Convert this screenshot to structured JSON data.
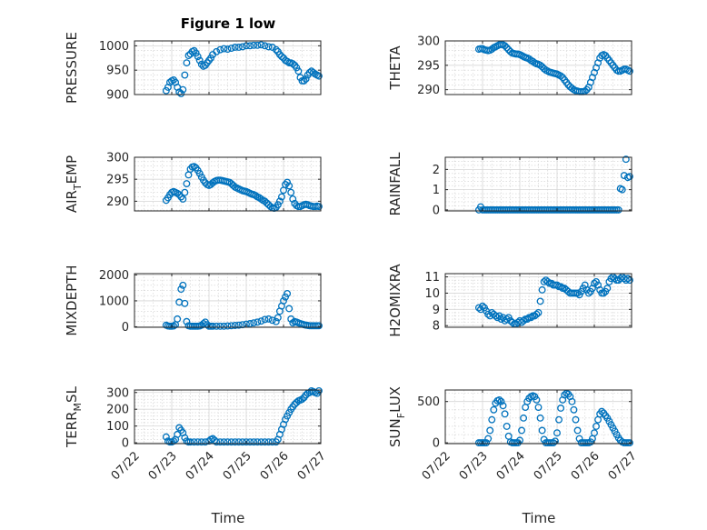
{
  "figure_title": "Figure 1 low",
  "colors": {
    "marker": "#0072bd",
    "axes": "#262626",
    "grid": "#d6d6d6"
  },
  "x_tick_labels": [
    "07/22",
    "07/23",
    "07/24",
    "07/25",
    "07/26",
    "07/27"
  ],
  "x_axis_label": "Time",
  "chart_data": [
    {
      "type": "scatter",
      "title": "Figure 1 low",
      "ylabel": "PRESSURE",
      "xlim": [
        0,
        5
      ],
      "ylim": [
        900,
        1010
      ],
      "yticks": [
        900,
        950,
        1000
      ],
      "grid": "major+minor",
      "x": [
        0.85,
        0.9,
        0.95,
        1.0,
        1.05,
        1.1,
        1.15,
        1.2,
        1.25,
        1.3,
        1.35,
        1.4,
        1.45,
        1.5,
        1.55,
        1.6,
        1.65,
        1.7,
        1.75,
        1.8,
        1.85,
        1.9,
        1.95,
        2.0,
        2.05,
        2.1,
        2.2,
        2.3,
        2.4,
        2.5,
        2.6,
        2.7,
        2.8,
        2.9,
        3.0,
        3.1,
        3.2,
        3.3,
        3.4,
        3.5,
        3.6,
        3.7,
        3.8,
        3.85,
        3.9,
        3.95,
        4.0,
        4.05,
        4.1,
        4.15,
        4.2,
        4.25,
        4.3,
        4.35,
        4.4,
        4.45,
        4.5,
        4.55,
        4.6,
        4.65,
        4.7,
        4.75,
        4.8,
        4.85,
        4.9,
        4.95
      ],
      "y": [
        908,
        915,
        925,
        928,
        930,
        925,
        915,
        905,
        902,
        910,
        940,
        965,
        980,
        983,
        988,
        990,
        985,
        978,
        970,
        962,
        958,
        960,
        965,
        970,
        975,
        982,
        988,
        992,
        994,
        993,
        995,
        997,
        997,
        998,
        1000,
        1000,
        1001,
        1001,
        1002,
        1000,
        998,
        997,
        992,
        988,
        982,
        978,
        975,
        970,
        968,
        965,
        965,
        963,
        960,
        955,
        948,
        935,
        928,
        928,
        932,
        940,
        945,
        948,
        945,
        942,
        940,
        938
      ]
    },
    {
      "type": "scatter",
      "ylabel": "THETA",
      "xlim": [
        0,
        5
      ],
      "ylim": [
        289,
        300
      ],
      "yticks": [
        290,
        295,
        300
      ],
      "grid": "major+minor",
      "x": [
        0.9,
        0.95,
        1.0,
        1.05,
        1.1,
        1.15,
        1.2,
        1.25,
        1.3,
        1.35,
        1.4,
        1.45,
        1.5,
        1.55,
        1.6,
        1.65,
        1.7,
        1.75,
        1.8,
        1.85,
        1.9,
        1.95,
        2.0,
        2.05,
        2.1,
        2.15,
        2.2,
        2.25,
        2.3,
        2.35,
        2.4,
        2.45,
        2.5,
        2.55,
        2.6,
        2.65,
        2.7,
        2.75,
        2.8,
        2.85,
        2.9,
        2.95,
        3.0,
        3.05,
        3.1,
        3.15,
        3.2,
        3.25,
        3.3,
        3.35,
        3.4,
        3.45,
        3.5,
        3.55,
        3.6,
        3.65,
        3.7,
        3.75,
        3.8,
        3.85,
        3.9,
        3.95,
        4.0,
        4.05,
        4.1,
        4.15,
        4.2,
        4.25,
        4.3,
        4.35,
        4.4,
        4.45,
        4.5,
        4.55,
        4.6,
        4.65,
        4.7,
        4.75,
        4.8,
        4.85,
        4.9,
        4.95
      ],
      "y": [
        298.3,
        298.4,
        298.4,
        298.2,
        298.1,
        298.0,
        298.1,
        298.3,
        298.6,
        298.8,
        299.0,
        299.2,
        299.3,
        299.2,
        299.0,
        298.6,
        298.2,
        297.8,
        297.5,
        297.4,
        297.3,
        297.3,
        297.2,
        297.0,
        296.8,
        296.6,
        296.5,
        296.3,
        296.0,
        295.8,
        295.5,
        295.3,
        295.2,
        295.0,
        294.7,
        294.3,
        294.0,
        293.8,
        293.6,
        293.5,
        293.4,
        293.3,
        293.2,
        293.0,
        292.8,
        292.5,
        292.0,
        291.5,
        291.0,
        290.6,
        290.3,
        290.0,
        289.8,
        289.7,
        289.6,
        289.6,
        289.6,
        289.7,
        290.0,
        290.5,
        291.5,
        292.5,
        293.5,
        294.5,
        295.5,
        296.5,
        297.0,
        297.2,
        297.0,
        296.5,
        296.0,
        295.5,
        295.0,
        294.5,
        294.0,
        293.8,
        293.8,
        294.0,
        294.2,
        294.2,
        294.0,
        293.8
      ]
    },
    {
      "type": "scatter",
      "ylabel": "AIR_TEMP",
      "xlim": [
        0,
        5
      ],
      "ylim": [
        287.8,
        300
      ],
      "yticks": [
        290,
        295,
        300
      ],
      "grid": "major+minor",
      "x": [
        0.85,
        0.9,
        0.95,
        1.0,
        1.05,
        1.1,
        1.15,
        1.2,
        1.25,
        1.3,
        1.35,
        1.4,
        1.45,
        1.5,
        1.55,
        1.6,
        1.65,
        1.7,
        1.75,
        1.8,
        1.85,
        1.9,
        1.95,
        2.0,
        2.05,
        2.1,
        2.15,
        2.2,
        2.25,
        2.3,
        2.35,
        2.4,
        2.45,
        2.5,
        2.55,
        2.6,
        2.65,
        2.7,
        2.75,
        2.8,
        2.85,
        2.9,
        2.95,
        3.0,
        3.05,
        3.1,
        3.15,
        3.2,
        3.25,
        3.3,
        3.35,
        3.4,
        3.45,
        3.5,
        3.55,
        3.6,
        3.65,
        3.7,
        3.75,
        3.8,
        3.85,
        3.9,
        3.95,
        4.0,
        4.05,
        4.1,
        4.15,
        4.2,
        4.25,
        4.3,
        4.35,
        4.4,
        4.45,
        4.5,
        4.55,
        4.6,
        4.65,
        4.7,
        4.75,
        4.8,
        4.85,
        4.9,
        4.95
      ],
      "y": [
        290.2,
        290.8,
        291.5,
        292.0,
        292.2,
        292.0,
        291.8,
        291.5,
        291.0,
        290.5,
        292.0,
        294.0,
        296.0,
        297.3,
        297.8,
        297.9,
        297.6,
        297.0,
        296.3,
        295.5,
        294.8,
        294.2,
        293.8,
        293.6,
        293.8,
        294.2,
        294.5,
        294.7,
        294.8,
        294.8,
        294.7,
        294.6,
        294.5,
        294.4,
        294.3,
        294.0,
        293.6,
        293.2,
        293.0,
        292.8,
        292.6,
        292.4,
        292.3,
        292.2,
        292.0,
        291.8,
        291.6,
        291.5,
        291.3,
        291.0,
        290.8,
        290.5,
        290.2,
        290.0,
        289.6,
        289.2,
        288.8,
        288.5,
        288.4,
        288.6,
        289.2,
        290.0,
        291.0,
        292.5,
        293.8,
        294.3,
        293.5,
        292.0,
        290.5,
        289.5,
        289.0,
        288.8,
        288.8,
        289.0,
        289.2,
        289.3,
        289.2,
        289.0,
        288.9,
        288.8,
        288.8,
        288.9,
        288.8
      ]
    },
    {
      "type": "scatter",
      "ylabel": "RAINFALL",
      "xlim": [
        0,
        5
      ],
      "ylim": [
        -0.05,
        2.6
      ],
      "yticks": [
        0,
        1,
        2
      ],
      "grid": "major+minor",
      "x": [
        0.9,
        0.95,
        1.0,
        1.05,
        1.1,
        1.15,
        1.2,
        1.25,
        1.3,
        1.35,
        1.4,
        1.45,
        1.5,
        1.55,
        1.6,
        1.65,
        1.7,
        1.75,
        1.8,
        1.85,
        1.9,
        1.95,
        2.0,
        2.05,
        2.1,
        2.15,
        2.2,
        2.25,
        2.3,
        2.35,
        2.4,
        2.45,
        2.5,
        2.55,
        2.6,
        2.65,
        2.7,
        2.75,
        2.8,
        2.85,
        2.9,
        2.95,
        3.0,
        3.05,
        3.1,
        3.15,
        3.2,
        3.25,
        3.3,
        3.35,
        3.4,
        3.45,
        3.5,
        3.55,
        3.6,
        3.65,
        3.7,
        3.75,
        3.8,
        3.85,
        3.9,
        3.95,
        4.0,
        4.05,
        4.1,
        4.15,
        4.2,
        4.25,
        4.3,
        4.35,
        4.4,
        4.45,
        4.5,
        4.55,
        4.6,
        4.65,
        4.7,
        4.75,
        4.8,
        4.85,
        4.9,
        4.95
      ],
      "y": [
        0.0,
        0.15,
        0.0,
        0.0,
        0.0,
        0.0,
        0.0,
        0.0,
        0.0,
        0.0,
        0.0,
        0.0,
        0.0,
        0.0,
        0.0,
        0.0,
        0.0,
        0.0,
        0.0,
        0.0,
        0.0,
        0.0,
        0.0,
        0.0,
        0.0,
        0.0,
        0.0,
        0.0,
        0.0,
        0.0,
        0.0,
        0.0,
        0.0,
        0.0,
        0.0,
        0.0,
        0.0,
        0.0,
        0.0,
        0.0,
        0.0,
        0.0,
        0.0,
        0.0,
        0.0,
        0.0,
        0.0,
        0.0,
        0.0,
        0.0,
        0.0,
        0.0,
        0.0,
        0.0,
        0.0,
        0.0,
        0.0,
        0.0,
        0.0,
        0.0,
        0.0,
        0.0,
        0.0,
        0.0,
        0.0,
        0.0,
        0.0,
        0.0,
        0.0,
        0.0,
        0.0,
        0.0,
        0.0,
        0.0,
        0.0,
        0.0,
        1.05,
        1.0,
        1.7,
        2.5,
        1.6,
        1.65
      ]
    },
    {
      "type": "scatter",
      "ylabel": "MIXDEPTH",
      "xlim": [
        0,
        5
      ],
      "ylim": [
        -20,
        2050
      ],
      "yticks": [
        0,
        1000,
        2000
      ],
      "grid": "major+minor",
      "x": [
        0.85,
        0.9,
        0.95,
        1.0,
        1.05,
        1.1,
        1.15,
        1.2,
        1.25,
        1.3,
        1.35,
        1.4,
        1.45,
        1.5,
        1.55,
        1.6,
        1.65,
        1.7,
        1.75,
        1.8,
        1.85,
        1.9,
        1.95,
        2.0,
        2.05,
        2.1,
        2.2,
        2.3,
        2.4,
        2.5,
        2.6,
        2.7,
        2.8,
        2.9,
        3.0,
        3.1,
        3.2,
        3.3,
        3.4,
        3.5,
        3.6,
        3.7,
        3.8,
        3.85,
        3.9,
        3.95,
        4.0,
        4.05,
        4.1,
        4.15,
        4.2,
        4.25,
        4.3,
        4.35,
        4.4,
        4.45,
        4.5,
        4.55,
        4.6,
        4.65,
        4.7,
        4.75,
        4.8,
        4.85,
        4.9,
        4.95
      ],
      "y": [
        60,
        30,
        20,
        20,
        30,
        80,
        300,
        950,
        1450,
        1600,
        900,
        200,
        40,
        20,
        20,
        20,
        20,
        20,
        30,
        60,
        120,
        180,
        80,
        20,
        20,
        20,
        20,
        20,
        20,
        30,
        40,
        50,
        60,
        80,
        100,
        120,
        150,
        180,
        220,
        280,
        300,
        250,
        200,
        350,
        600,
        800,
        1000,
        1150,
        1280,
        700,
        300,
        150,
        200,
        180,
        150,
        120,
        100,
        80,
        60,
        50,
        40,
        40,
        40,
        40,
        40,
        40
      ]
    },
    {
      "type": "scatter",
      "ylabel": "H2OMIXRA",
      "xlim": [
        0,
        5
      ],
      "ylim": [
        7.9,
        11.2
      ],
      "yticks": [
        8,
        9,
        10,
        11
      ],
      "grid": "major+minor",
      "x": [
        0.9,
        0.95,
        1.0,
        1.05,
        1.1,
        1.15,
        1.2,
        1.25,
        1.3,
        1.35,
        1.4,
        1.45,
        1.5,
        1.55,
        1.6,
        1.65,
        1.7,
        1.75,
        1.8,
        1.85,
        1.9,
        1.95,
        2.0,
        2.05,
        2.1,
        2.15,
        2.2,
        2.25,
        2.3,
        2.35,
        2.4,
        2.45,
        2.5,
        2.55,
        2.6,
        2.65,
        2.7,
        2.75,
        2.8,
        2.85,
        2.9,
        2.95,
        3.0,
        3.05,
        3.1,
        3.15,
        3.2,
        3.25,
        3.3,
        3.35,
        3.4,
        3.45,
        3.5,
        3.55,
        3.6,
        3.65,
        3.7,
        3.75,
        3.8,
        3.85,
        3.9,
        3.95,
        4.0,
        4.05,
        4.1,
        4.15,
        4.2,
        4.25,
        4.3,
        4.35,
        4.4,
        4.45,
        4.5,
        4.55,
        4.6,
        4.65,
        4.7,
        4.75,
        4.8,
        4.85,
        4.9,
        4.95
      ],
      "y": [
        9.1,
        9.0,
        9.2,
        9.1,
        8.9,
        8.7,
        8.6,
        8.8,
        8.7,
        8.6,
        8.5,
        8.6,
        8.4,
        8.5,
        8.3,
        8.4,
        8.5,
        8.3,
        8.2,
        8.1,
        8.1,
        8.2,
        8.3,
        8.2,
        8.3,
        8.4,
        8.4,
        8.5,
        8.5,
        8.6,
        8.6,
        8.7,
        8.8,
        9.5,
        10.2,
        10.7,
        10.8,
        10.7,
        10.6,
        10.6,
        10.5,
        10.5,
        10.5,
        10.4,
        10.4,
        10.3,
        10.3,
        10.2,
        10.1,
        10.0,
        10.0,
        10.0,
        10.0,
        10.0,
        9.9,
        10.1,
        10.3,
        10.5,
        10.2,
        10.0,
        10.1,
        10.3,
        10.6,
        10.7,
        10.5,
        10.2,
        10.0,
        10.0,
        10.1,
        10.3,
        10.7,
        10.9,
        11.0,
        10.9,
        10.8,
        10.8,
        10.9,
        11.0,
        10.9,
        10.8,
        10.9,
        10.8
      ]
    },
    {
      "type": "scatter",
      "ylabel": "TERR_MSL",
      "xlim": [
        0,
        5
      ],
      "ylim": [
        -5,
        315
      ],
      "yticks": [
        0,
        100,
        200,
        300
      ],
      "grid": "major+minor",
      "x": [
        0.85,
        0.9,
        0.95,
        1.0,
        1.05,
        1.1,
        1.15,
        1.2,
        1.25,
        1.3,
        1.35,
        1.4,
        1.45,
        1.5,
        1.6,
        1.7,
        1.8,
        1.9,
        2.0,
        2.05,
        2.1,
        2.15,
        2.2,
        2.3,
        2.4,
        2.5,
        2.6,
        2.7,
        2.8,
        2.9,
        3.0,
        3.1,
        3.2,
        3.3,
        3.4,
        3.5,
        3.6,
        3.7,
        3.8,
        3.85,
        3.9,
        3.95,
        4.0,
        4.05,
        4.1,
        4.15,
        4.2,
        4.25,
        4.3,
        4.35,
        4.4,
        4.45,
        4.5,
        4.55,
        4.6,
        4.65,
        4.7,
        4.75,
        4.8,
        4.85,
        4.9,
        4.95
      ],
      "y": [
        35,
        10,
        5,
        5,
        10,
        20,
        50,
        90,
        75,
        60,
        30,
        10,
        5,
        5,
        5,
        5,
        5,
        5,
        10,
        20,
        25,
        15,
        5,
        5,
        5,
        5,
        5,
        5,
        5,
        5,
        5,
        5,
        5,
        5,
        5,
        5,
        5,
        5,
        5,
        20,
        50,
        80,
        110,
        140,
        160,
        180,
        200,
        215,
        230,
        240,
        250,
        255,
        260,
        270,
        285,
        295,
        300,
        310,
        305,
        300,
        295,
        310
      ]
    },
    {
      "type": "scatter",
      "ylabel": "SUN_FLUX",
      "xlim": [
        0,
        5
      ],
      "ylim": [
        -10,
        640
      ],
      "yticks": [
        0,
        500
      ],
      "grid": "major+minor",
      "x": [
        0.9,
        0.95,
        1.0,
        1.05,
        1.1,
        1.15,
        1.2,
        1.25,
        1.3,
        1.35,
        1.4,
        1.45,
        1.5,
        1.55,
        1.6,
        1.65,
        1.7,
        1.75,
        1.8,
        1.85,
        1.9,
        1.95,
        2.0,
        2.05,
        2.1,
        2.15,
        2.2,
        2.25,
        2.3,
        2.35,
        2.4,
        2.45,
        2.5,
        2.55,
        2.6,
        2.65,
        2.7,
        2.75,
        2.8,
        2.85,
        2.9,
        2.95,
        3.0,
        3.05,
        3.1,
        3.15,
        3.2,
        3.25,
        3.3,
        3.35,
        3.4,
        3.45,
        3.5,
        3.55,
        3.6,
        3.65,
        3.7,
        3.75,
        3.8,
        3.85,
        3.9,
        3.95,
        4.0,
        4.05,
        4.1,
        4.15,
        4.2,
        4.25,
        4.3,
        4.35,
        4.4,
        4.45,
        4.5,
        4.55,
        4.6,
        4.65,
        4.7,
        4.75,
        4.8,
        4.85,
        4.9,
        4.95
      ],
      "y": [
        0,
        0,
        0,
        0,
        0,
        50,
        150,
        280,
        400,
        480,
        510,
        520,
        500,
        450,
        350,
        200,
        80,
        10,
        0,
        0,
        0,
        0,
        30,
        150,
        300,
        430,
        500,
        540,
        560,
        570,
        560,
        520,
        430,
        300,
        150,
        40,
        0,
        0,
        0,
        0,
        0,
        20,
        120,
        280,
        420,
        520,
        580,
        600,
        590,
        560,
        500,
        400,
        280,
        150,
        50,
        0,
        0,
        0,
        0,
        0,
        10,
        50,
        120,
        200,
        280,
        350,
        380,
        360,
        330,
        300,
        260,
        220,
        180,
        140,
        100,
        60,
        30,
        10,
        0,
        0,
        0,
        0
      ]
    }
  ]
}
